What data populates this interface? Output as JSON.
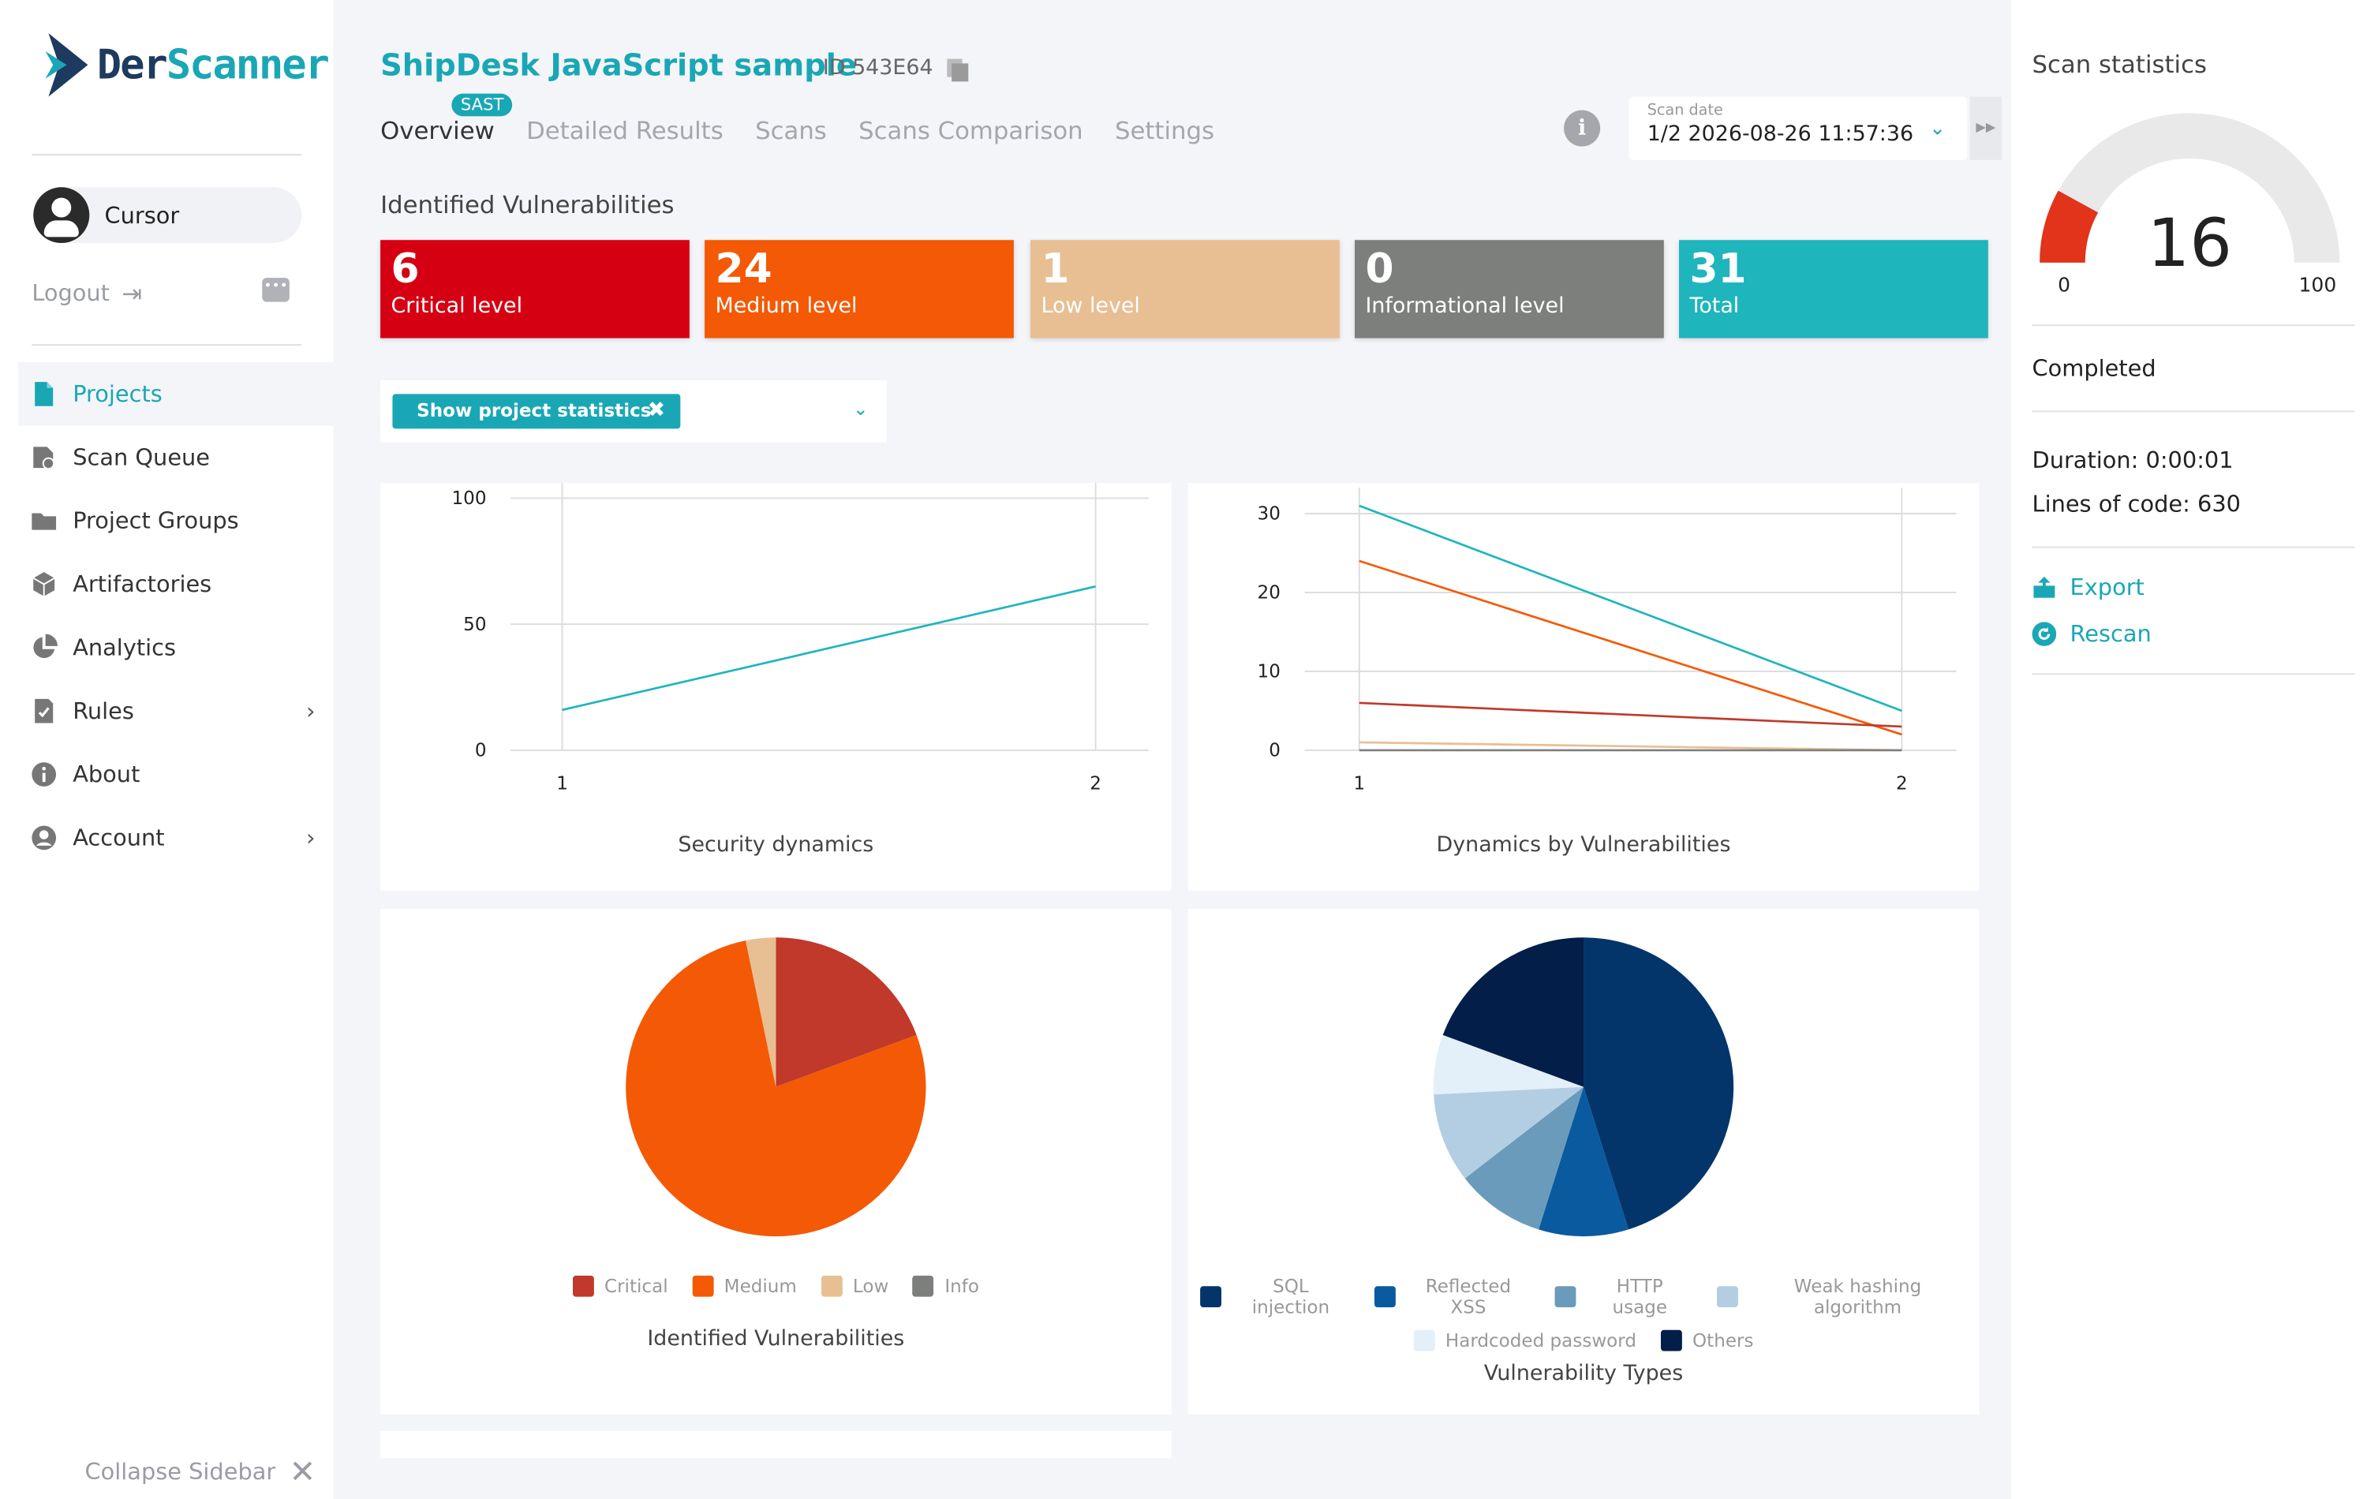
{
  "sidebar": {
    "logo": {
      "part1": "Der",
      "part2": "Scanner"
    },
    "user_name": "Cursor",
    "logout_label": "Logout",
    "items": [
      {
        "label": "Projects",
        "icon": "file-icon"
      },
      {
        "label": "Scan Queue",
        "icon": "scan-queue-icon"
      },
      {
        "label": "Project Groups",
        "icon": "folder-icon"
      },
      {
        "label": "Artifactories",
        "icon": "box-icon"
      },
      {
        "label": "Analytics",
        "icon": "pie-chart-icon"
      },
      {
        "label": "Rules",
        "icon": "rules-icon"
      },
      {
        "label": "About",
        "icon": "info-icon"
      },
      {
        "label": "Account",
        "icon": "user-icon"
      }
    ],
    "active_item": "Projects",
    "collapse_label": "Collapse Sidebar"
  },
  "header": {
    "project_title": "ShipDesk JavaScript sample",
    "project_id": "ID 543E64",
    "badge": "SAST",
    "tabs": [
      "Overview",
      "Detailed Results",
      "Scans",
      "Scans Comparison",
      "Settings"
    ],
    "active_tab": "Overview",
    "scan_date_label": "Scan date",
    "scan_date_value": "1/2 2026-08-26 11:57:36"
  },
  "vulnerabilities": {
    "section_label": "Identified Vulnerabilities",
    "cards": [
      {
        "count": "6",
        "label": "Critical level",
        "color": "#d50012"
      },
      {
        "count": "24",
        "label": "Medium level",
        "color": "#f45905"
      },
      {
        "count": "1",
        "label": "Low level",
        "color": "#e8bf93"
      },
      {
        "count": "0",
        "label": "Informational level",
        "color": "#7d7f7d"
      },
      {
        "count": "31",
        "label": "Total",
        "color": "#1fb5bd"
      }
    ]
  },
  "filter": {
    "chip_label": "Show project statistics"
  },
  "charts": {
    "security_dynamics_title": "Security dynamics",
    "dynamics_by_vuln_title": "Dynamics by Vulnerabilities",
    "identified_vuln_title": "Identified Vulnerabilities",
    "vuln_types_title": "Vulnerability Types"
  },
  "chart_data": [
    {
      "type": "line",
      "title": "Security dynamics",
      "x": [
        1,
        2
      ],
      "ylim": [
        0,
        100
      ],
      "yticks": [
        0,
        50,
        100
      ],
      "series": [
        {
          "values": [
            16,
            65
          ],
          "color": "#1fb5bd"
        }
      ]
    },
    {
      "type": "line",
      "title": "Dynamics by Vulnerabilities",
      "x": [
        1,
        2
      ],
      "ylim": [
        0,
        31
      ],
      "yticks": [
        0,
        10,
        20,
        30
      ],
      "series": [
        {
          "values": [
            31,
            5
          ],
          "color": "#1fb5bd"
        },
        {
          "values": [
            24,
            2
          ],
          "color": "#f45905"
        },
        {
          "values": [
            6,
            3
          ],
          "color": "#c0392b"
        },
        {
          "values": [
            1,
            0
          ],
          "color": "#e8bf93"
        },
        {
          "values": [
            0,
            0
          ],
          "color": "#7d7f7d"
        }
      ]
    },
    {
      "type": "pie",
      "title": "Identified Vulnerabilities",
      "slices": [
        {
          "label": "Critical",
          "value": 6,
          "color": "#c0392b"
        },
        {
          "label": "Medium",
          "value": 24,
          "color": "#f45905"
        },
        {
          "label": "Low",
          "value": 1,
          "color": "#e8bf93"
        },
        {
          "label": "Info",
          "value": 0,
          "color": "#7d7f7d"
        }
      ]
    },
    {
      "type": "pie",
      "title": "Vulnerability Types",
      "slices": [
        {
          "label": "SQL injection",
          "value": 14,
          "color": "#03356a"
        },
        {
          "label": "Reflected XSS",
          "value": 3,
          "color": "#0a5aa0"
        },
        {
          "label": "HTTP usage",
          "value": 3,
          "color": "#6a9bbb"
        },
        {
          "label": "Weak hashing algorithm",
          "value": 3,
          "color": "#b3cee2"
        },
        {
          "label": "Hardcoded password",
          "value": 2,
          "color": "#e3eff9"
        },
        {
          "label": "Others",
          "value": 6,
          "color": "#031e48"
        }
      ]
    }
  ],
  "right_panel": {
    "title": "Scan statistics",
    "gauge": {
      "value": "16",
      "min": "0",
      "max": "100",
      "fill_fraction": 0.16,
      "fill_color": "#e2331b",
      "track_color": "#e9e9ea"
    },
    "status": "Completed",
    "duration": "Duration: 0:00:01",
    "lines_of_code": "Lines of code: 630",
    "export_label": "Export",
    "rescan_label": "Rescan"
  }
}
